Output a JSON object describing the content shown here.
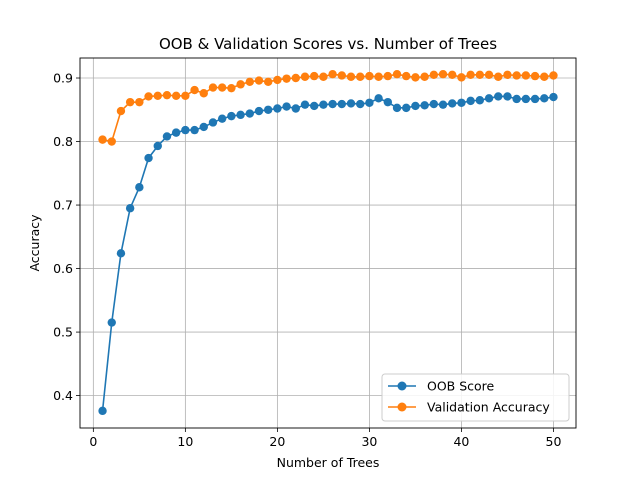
{
  "chart_data": {
    "type": "line",
    "title": "OOB & Validation Scores vs. Number of Trees",
    "xlabel": "Number of Trees",
    "ylabel": "Accuracy",
    "xlim": [
      -1.45,
      52.45
    ],
    "ylim": [
      0.349,
      0.9315
    ],
    "xticks": [
      0,
      10,
      20,
      30,
      40,
      50
    ],
    "yticks": [
      0.4,
      0.5,
      0.6,
      0.7,
      0.8,
      0.9
    ],
    "grid": true,
    "legend_position": "lower-right",
    "x": [
      1,
      2,
      3,
      4,
      5,
      6,
      7,
      8,
      9,
      10,
      11,
      12,
      13,
      14,
      15,
      16,
      17,
      18,
      19,
      20,
      21,
      22,
      23,
      24,
      25,
      26,
      27,
      28,
      29,
      30,
      31,
      32,
      33,
      34,
      35,
      36,
      37,
      38,
      39,
      40,
      41,
      42,
      43,
      44,
      45,
      46,
      47,
      48,
      49,
      50
    ],
    "series": [
      {
        "name": "OOB Score",
        "color": "#1f77b4",
        "values": [
          0.376,
          0.515,
          0.624,
          0.695,
          0.728,
          0.774,
          0.793,
          0.808,
          0.814,
          0.818,
          0.818,
          0.823,
          0.83,
          0.836,
          0.84,
          0.842,
          0.844,
          0.848,
          0.85,
          0.852,
          0.855,
          0.852,
          0.858,
          0.856,
          0.858,
          0.859,
          0.859,
          0.86,
          0.859,
          0.861,
          0.868,
          0.862,
          0.853,
          0.853,
          0.856,
          0.857,
          0.859,
          0.858,
          0.86,
          0.861,
          0.864,
          0.865,
          0.868,
          0.871,
          0.871,
          0.867,
          0.867,
          0.867,
          0.868,
          0.87
        ]
      },
      {
        "name": "Validation Accuracy",
        "color": "#ff7f0e",
        "values": [
          0.803,
          0.8,
          0.848,
          0.862,
          0.862,
          0.871,
          0.872,
          0.873,
          0.872,
          0.872,
          0.881,
          0.876,
          0.885,
          0.885,
          0.884,
          0.89,
          0.894,
          0.896,
          0.894,
          0.897,
          0.899,
          0.9,
          0.902,
          0.903,
          0.902,
          0.906,
          0.904,
          0.902,
          0.902,
          0.903,
          0.902,
          0.903,
          0.906,
          0.903,
          0.901,
          0.902,
          0.905,
          0.906,
          0.905,
          0.901,
          0.905,
          0.905,
          0.905,
          0.902,
          0.905,
          0.904,
          0.904,
          0.903,
          0.902,
          0.904
        ]
      }
    ]
  }
}
